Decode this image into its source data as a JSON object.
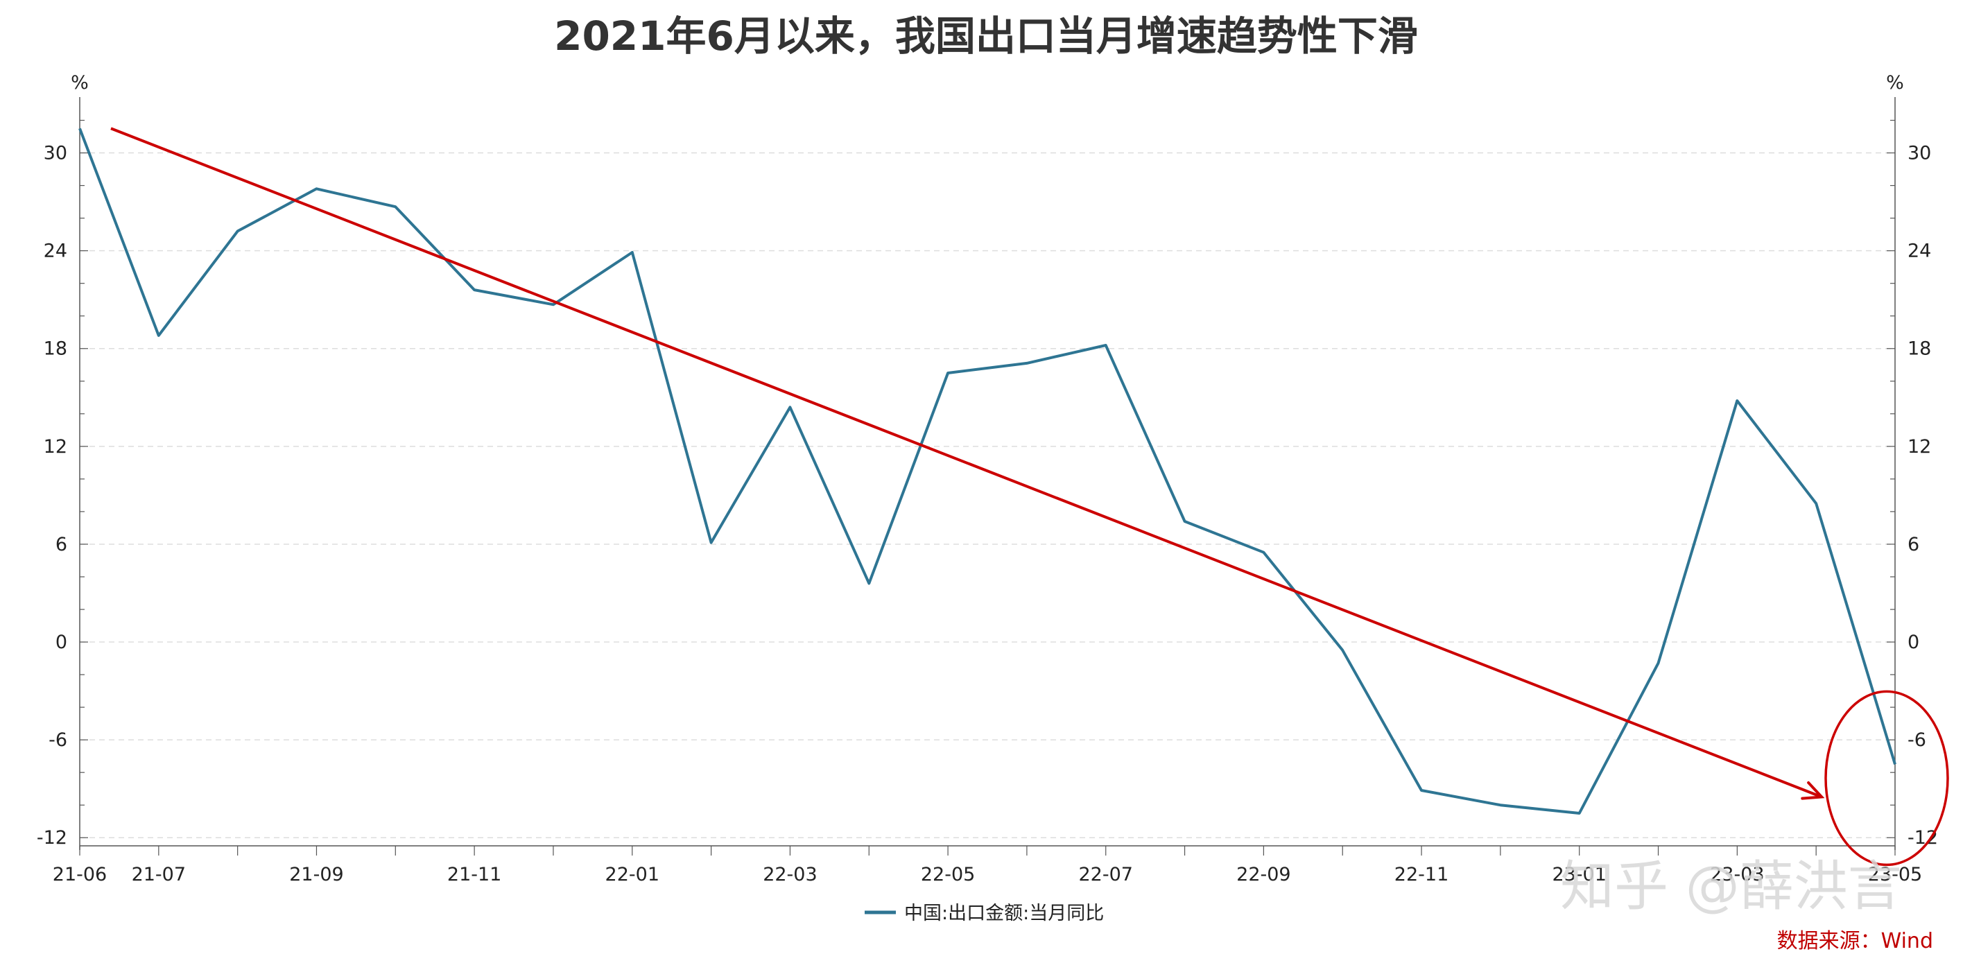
{
  "chart_data": {
    "type": "line",
    "title": "2021年6月以来，我国出口当月增速趋势性下滑",
    "y_unit_left": "%",
    "y_unit_right": "%",
    "ylim": [
      -12.5,
      33
    ],
    "yticks": [
      -12,
      -6,
      0,
      6,
      12,
      18,
      24,
      30
    ],
    "x": [
      "21-06",
      "21-07",
      "21-08",
      "21-09",
      "21-10",
      "21-11",
      "21-12",
      "22-01",
      "22-02",
      "22-03",
      "22-04",
      "22-05",
      "22-06",
      "22-07",
      "22-08",
      "22-09",
      "22-10",
      "22-11",
      "22-12",
      "23-01",
      "23-02",
      "23-03",
      "23-04",
      "23-05"
    ],
    "x_tick_labels": [
      "21-06",
      "21-07",
      "21-09",
      "21-11",
      "22-01",
      "22-03",
      "22-05",
      "22-07",
      "22-09",
      "22-11",
      "23-01",
      "23-03",
      "23-05"
    ],
    "series": [
      {
        "name": "中国:出口金额:当月同比",
        "color": "#2e7593",
        "values": [
          31.5,
          18.8,
          25.2,
          27.8,
          26.7,
          21.6,
          20.7,
          23.9,
          6.1,
          14.4,
          3.6,
          16.5,
          17.1,
          18.2,
          7.4,
          5.5,
          -0.5,
          -9.1,
          -10.0,
          -10.5,
          -1.3,
          14.8,
          8.5,
          -7.5
        ]
      }
    ],
    "trend_arrow": {
      "color": "#cc0000",
      "from": [
        "21-06",
        31.5
      ],
      "to": [
        "23-04",
        -9.5
      ]
    },
    "highlight_circle": {
      "color": "#cc0000",
      "around": "23-05"
    },
    "grid": "horizontal-dashed",
    "legend_position": "bottom-center",
    "source": "数据来源：Wind",
    "watermark": "知乎 @薛洪言"
  }
}
